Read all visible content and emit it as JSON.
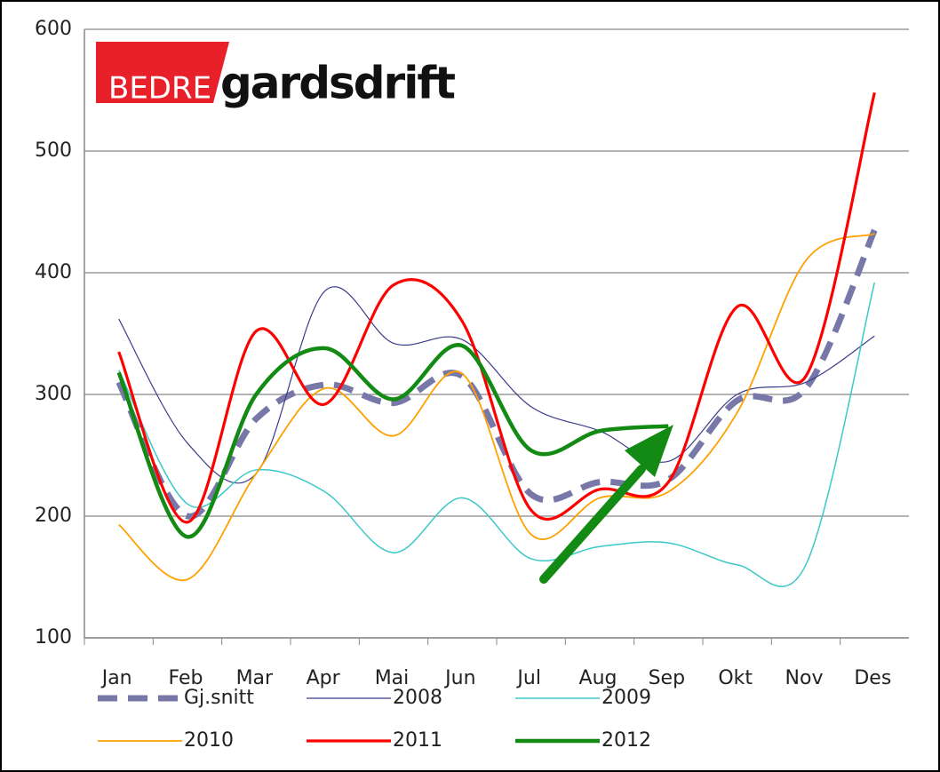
{
  "logo": {
    "prefix": "BEDRE",
    "name": "gardsdrift"
  },
  "chart_data": {
    "type": "line",
    "categories": [
      "Jan",
      "Feb",
      "Mar",
      "Apr",
      "Mai",
      "Jun",
      "Jul",
      "Aug",
      "Sep",
      "Okt",
      "Nov",
      "Des"
    ],
    "ylim": [
      100,
      600
    ],
    "yticks": [
      100,
      200,
      300,
      400,
      500,
      600
    ],
    "grid": true,
    "series": [
      {
        "name": "Gj.snitt",
        "color": "#7878a8",
        "values": [
          310,
          200,
          280,
          308,
          293,
          315,
          218,
          228,
          230,
          295,
          305,
          435
        ]
      },
      {
        "name": "2008",
        "color": "#3c3c8c",
        "values": [
          362,
          260,
          235,
          385,
          342,
          345,
          290,
          270,
          245,
          300,
          310,
          348
        ]
      },
      {
        "name": "2009",
        "color": "#3cc8c8",
        "values": [
          320,
          210,
          238,
          220,
          170,
          215,
          165,
          175,
          178,
          160,
          160,
          392
        ]
      },
      {
        "name": "2010",
        "color": "#ffa000",
        "values": [
          193,
          148,
          235,
          305,
          266,
          317,
          185,
          215,
          220,
          285,
          410,
          432
        ]
      },
      {
        "name": "2011",
        "color": "#ff0000",
        "values": [
          335,
          195,
          352,
          292,
          390,
          360,
          205,
          222,
          228,
          372,
          315,
          548
        ]
      },
      {
        "name": "2012",
        "color": "#138a13",
        "values": [
          318,
          183,
          300,
          338,
          296,
          340,
          254,
          270,
          274,
          null,
          null,
          null
        ]
      }
    ]
  }
}
